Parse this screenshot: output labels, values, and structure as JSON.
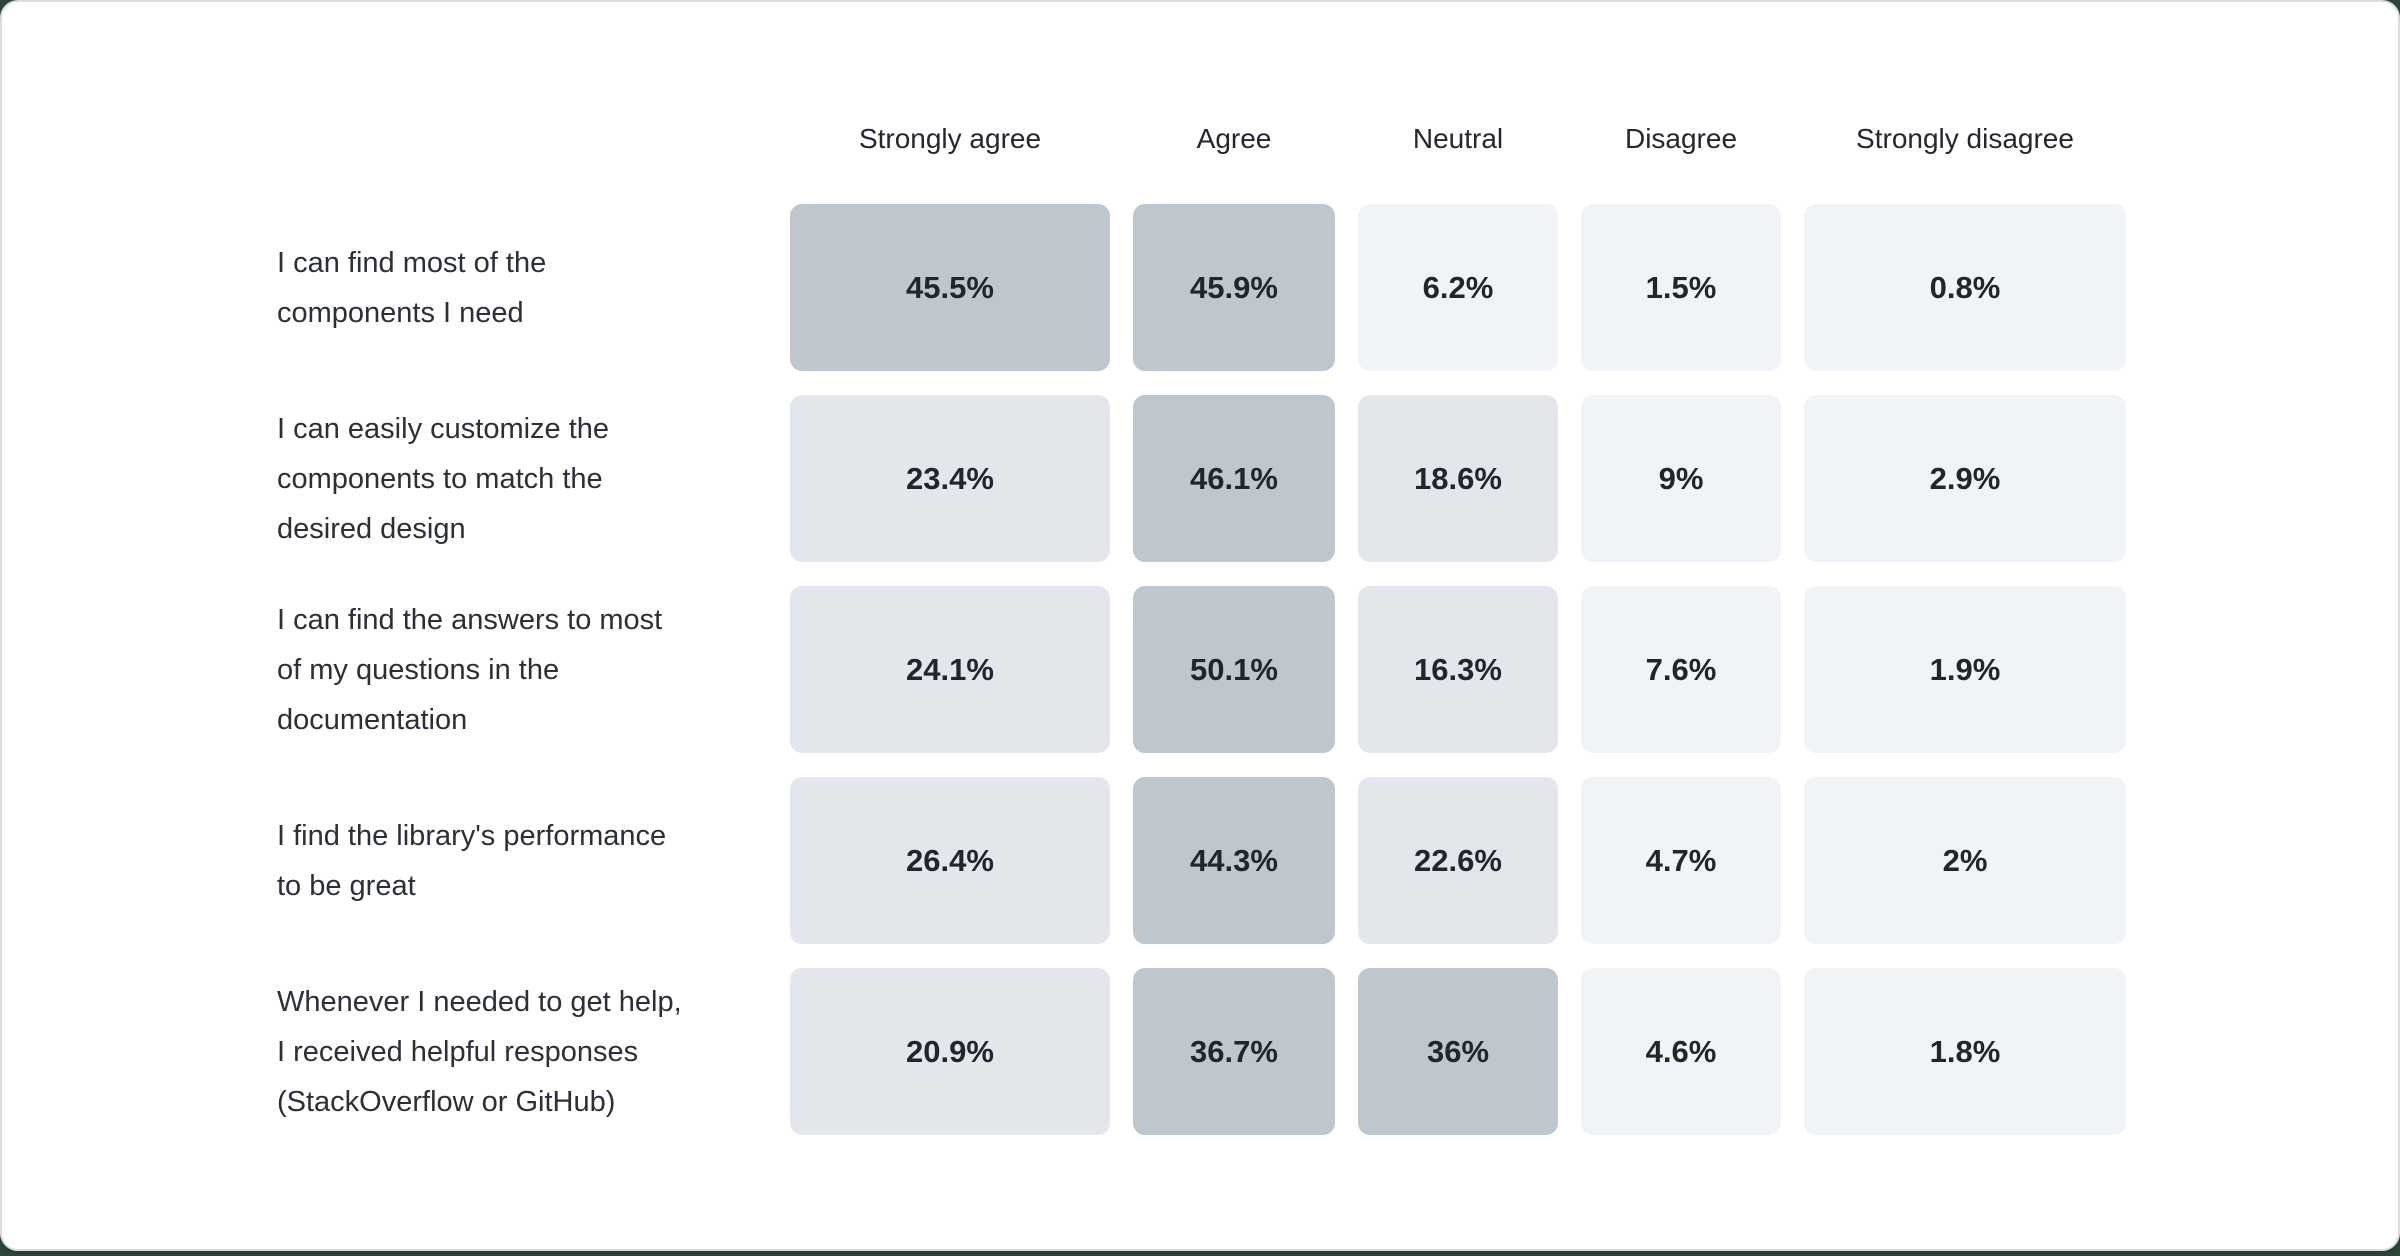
{
  "colors": {
    "page_background": "#2e453a",
    "card_background": "#ffffff",
    "card_border": "#d9dde1",
    "header_text": "#23282e",
    "label_text": "#2b3036",
    "value_text": "#20262c"
  },
  "chart_data": {
    "type": "heatmap",
    "title": "",
    "legend_position": "none",
    "value_unit": "%",
    "columns": [
      "Strongly agree",
      "Agree",
      "Neutral",
      "Disagree",
      "Strongly disagree"
    ],
    "heat_scale": {
      "high": "#bfc7ce",
      "mid": "#e3e7eb",
      "low": "#f1f4f7",
      "high_min": 30,
      "mid_min": 10
    },
    "rows": [
      {
        "label": "I can find most of the\ncomponents I need",
        "values": [
          45.5,
          45.9,
          6.2,
          1.5,
          0.8
        ],
        "display": [
          "45.5%",
          "45.9%",
          "6.2%",
          "1.5%",
          "0.8%"
        ]
      },
      {
        "label": "I can easily customize the\ncomponents to match the\ndesired design",
        "values": [
          23.4,
          46.1,
          18.6,
          9,
          2.9
        ],
        "display": [
          "23.4%",
          "46.1%",
          "18.6%",
          "9%",
          "2.9%"
        ]
      },
      {
        "label": "I can find the answers to most\nof my questions in the\ndocumentation",
        "values": [
          24.1,
          50.1,
          16.3,
          7.6,
          1.9
        ],
        "display": [
          "24.1%",
          "50.1%",
          "16.3%",
          "7.6%",
          "1.9%"
        ]
      },
      {
        "label": "I find the library's performance\nto be great",
        "values": [
          26.4,
          44.3,
          22.6,
          4.7,
          2
        ],
        "display": [
          "26.4%",
          "44.3%",
          "22.6%",
          "4.7%",
          "2%"
        ]
      },
      {
        "label": "Whenever I needed to get help,\nI received helpful responses\n(StackOverflow or GitHub)",
        "values": [
          20.9,
          36.7,
          36,
          4.6,
          1.8
        ],
        "display": [
          "20.9%",
          "36.7%",
          "36%",
          "4.6%",
          "1.8%"
        ]
      }
    ]
  }
}
